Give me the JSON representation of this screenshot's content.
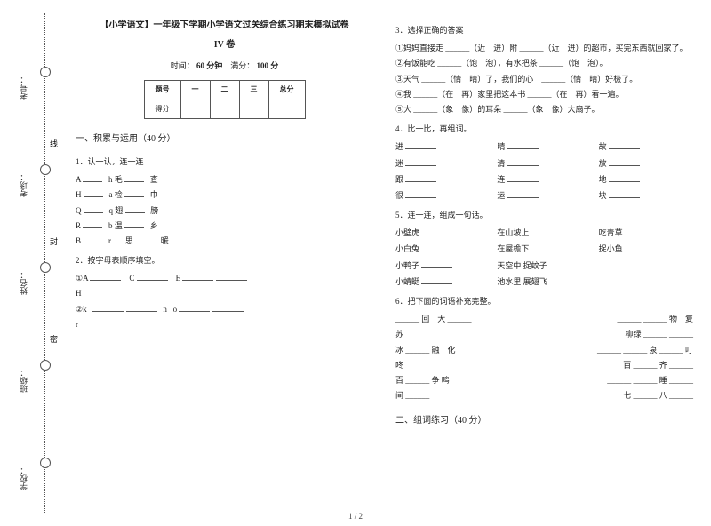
{
  "binding": {
    "labels": [
      "学校：",
      "班级：",
      "姓名：",
      "考场：",
      "考号："
    ],
    "chars": [
      "密",
      "封",
      "线"
    ]
  },
  "header": {
    "title": "【小学语文】一年级下学期小学语文过关综合练习期末模拟试卷",
    "subtitle": "IV 卷",
    "time_label": "时间：",
    "time_value": "60 分钟",
    "score_label": "满分：",
    "score_value": "100 分"
  },
  "score_table": {
    "headers": [
      "题号",
      "一",
      "二",
      "三",
      "总分"
    ],
    "row_label": "得分"
  },
  "section1": {
    "title": "一、积累与运用（40 分）",
    "q1": {
      "title": "1．认一认，连一连",
      "rows": [
        [
          "A",
          "h",
          "毛",
          "查"
        ],
        [
          "H",
          "a",
          "检",
          "巾"
        ],
        [
          "Q",
          "q",
          "翅",
          "膀"
        ],
        [
          "R",
          "b",
          "温",
          "乡"
        ],
        [
          "B",
          "r",
          "思",
          "暖"
        ]
      ]
    },
    "q2": {
      "title": "2．按字母表顺序填空。",
      "line1": [
        "①A",
        "C",
        "E"
      ],
      "line1_end": "H",
      "line2": [
        "②k",
        "n",
        "o"
      ],
      "line2_end": "r"
    },
    "q3": {
      "title": "3．选择正确的答案",
      "items": [
        "①妈妈直接走 ______（近　进）附 ______（近　进）的超市，买完东西就回家了。",
        "②有饭能吃 ______（饱　泡），有水把茶 ______（饱　泡）。",
        "③天气 ______（情　晴）了，我们的心　______（情　晴）好极了。",
        "④我 ______（在　再）家里把这本书 ______（在　再）看一遍。",
        "⑤大 ______（象　像）的耳朵 ______（象　像）大扇子。"
      ]
    },
    "q4": {
      "title": "4．比一比，再组词。",
      "rows": [
        [
          "进",
          "晴",
          "故"
        ],
        [
          "迷",
          "清",
          "放"
        ],
        [
          "跟",
          "连",
          "地"
        ],
        [
          "很",
          "运",
          "块"
        ]
      ]
    },
    "q5": {
      "title": "5．连一连，组成一句话。",
      "left": [
        "小壁虎",
        "小白兔",
        "小鸭子",
        "小蜻蜓"
      ],
      "mid": [
        "在山坡上",
        "在屋檐下",
        "天空中 捉蚊子",
        "池水里 展翅飞"
      ],
      "right": [
        "吃青草",
        "捉小鱼",
        "",
        ""
      ]
    },
    "q6": {
      "title": "6．把下面的词语补充完整。",
      "rows": [
        [
          "______ 回　大 ______",
          "______ ______ 物　复"
        ],
        [
          "苏",
          "柳绿 ______ ______"
        ],
        [
          "冰 ______ 融　化",
          "______ ______ 泉 ______ 叮"
        ],
        [
          "咚",
          "百 ______ 齐 ______"
        ],
        [
          "百 ______ 争 鸣",
          "______ ______ 睡 ______"
        ],
        [
          "间 ______",
          "七 ______ 八 ______"
        ]
      ]
    }
  },
  "section2": {
    "title": "二、组词练习（40 分）"
  },
  "page_num": "1 / 2"
}
